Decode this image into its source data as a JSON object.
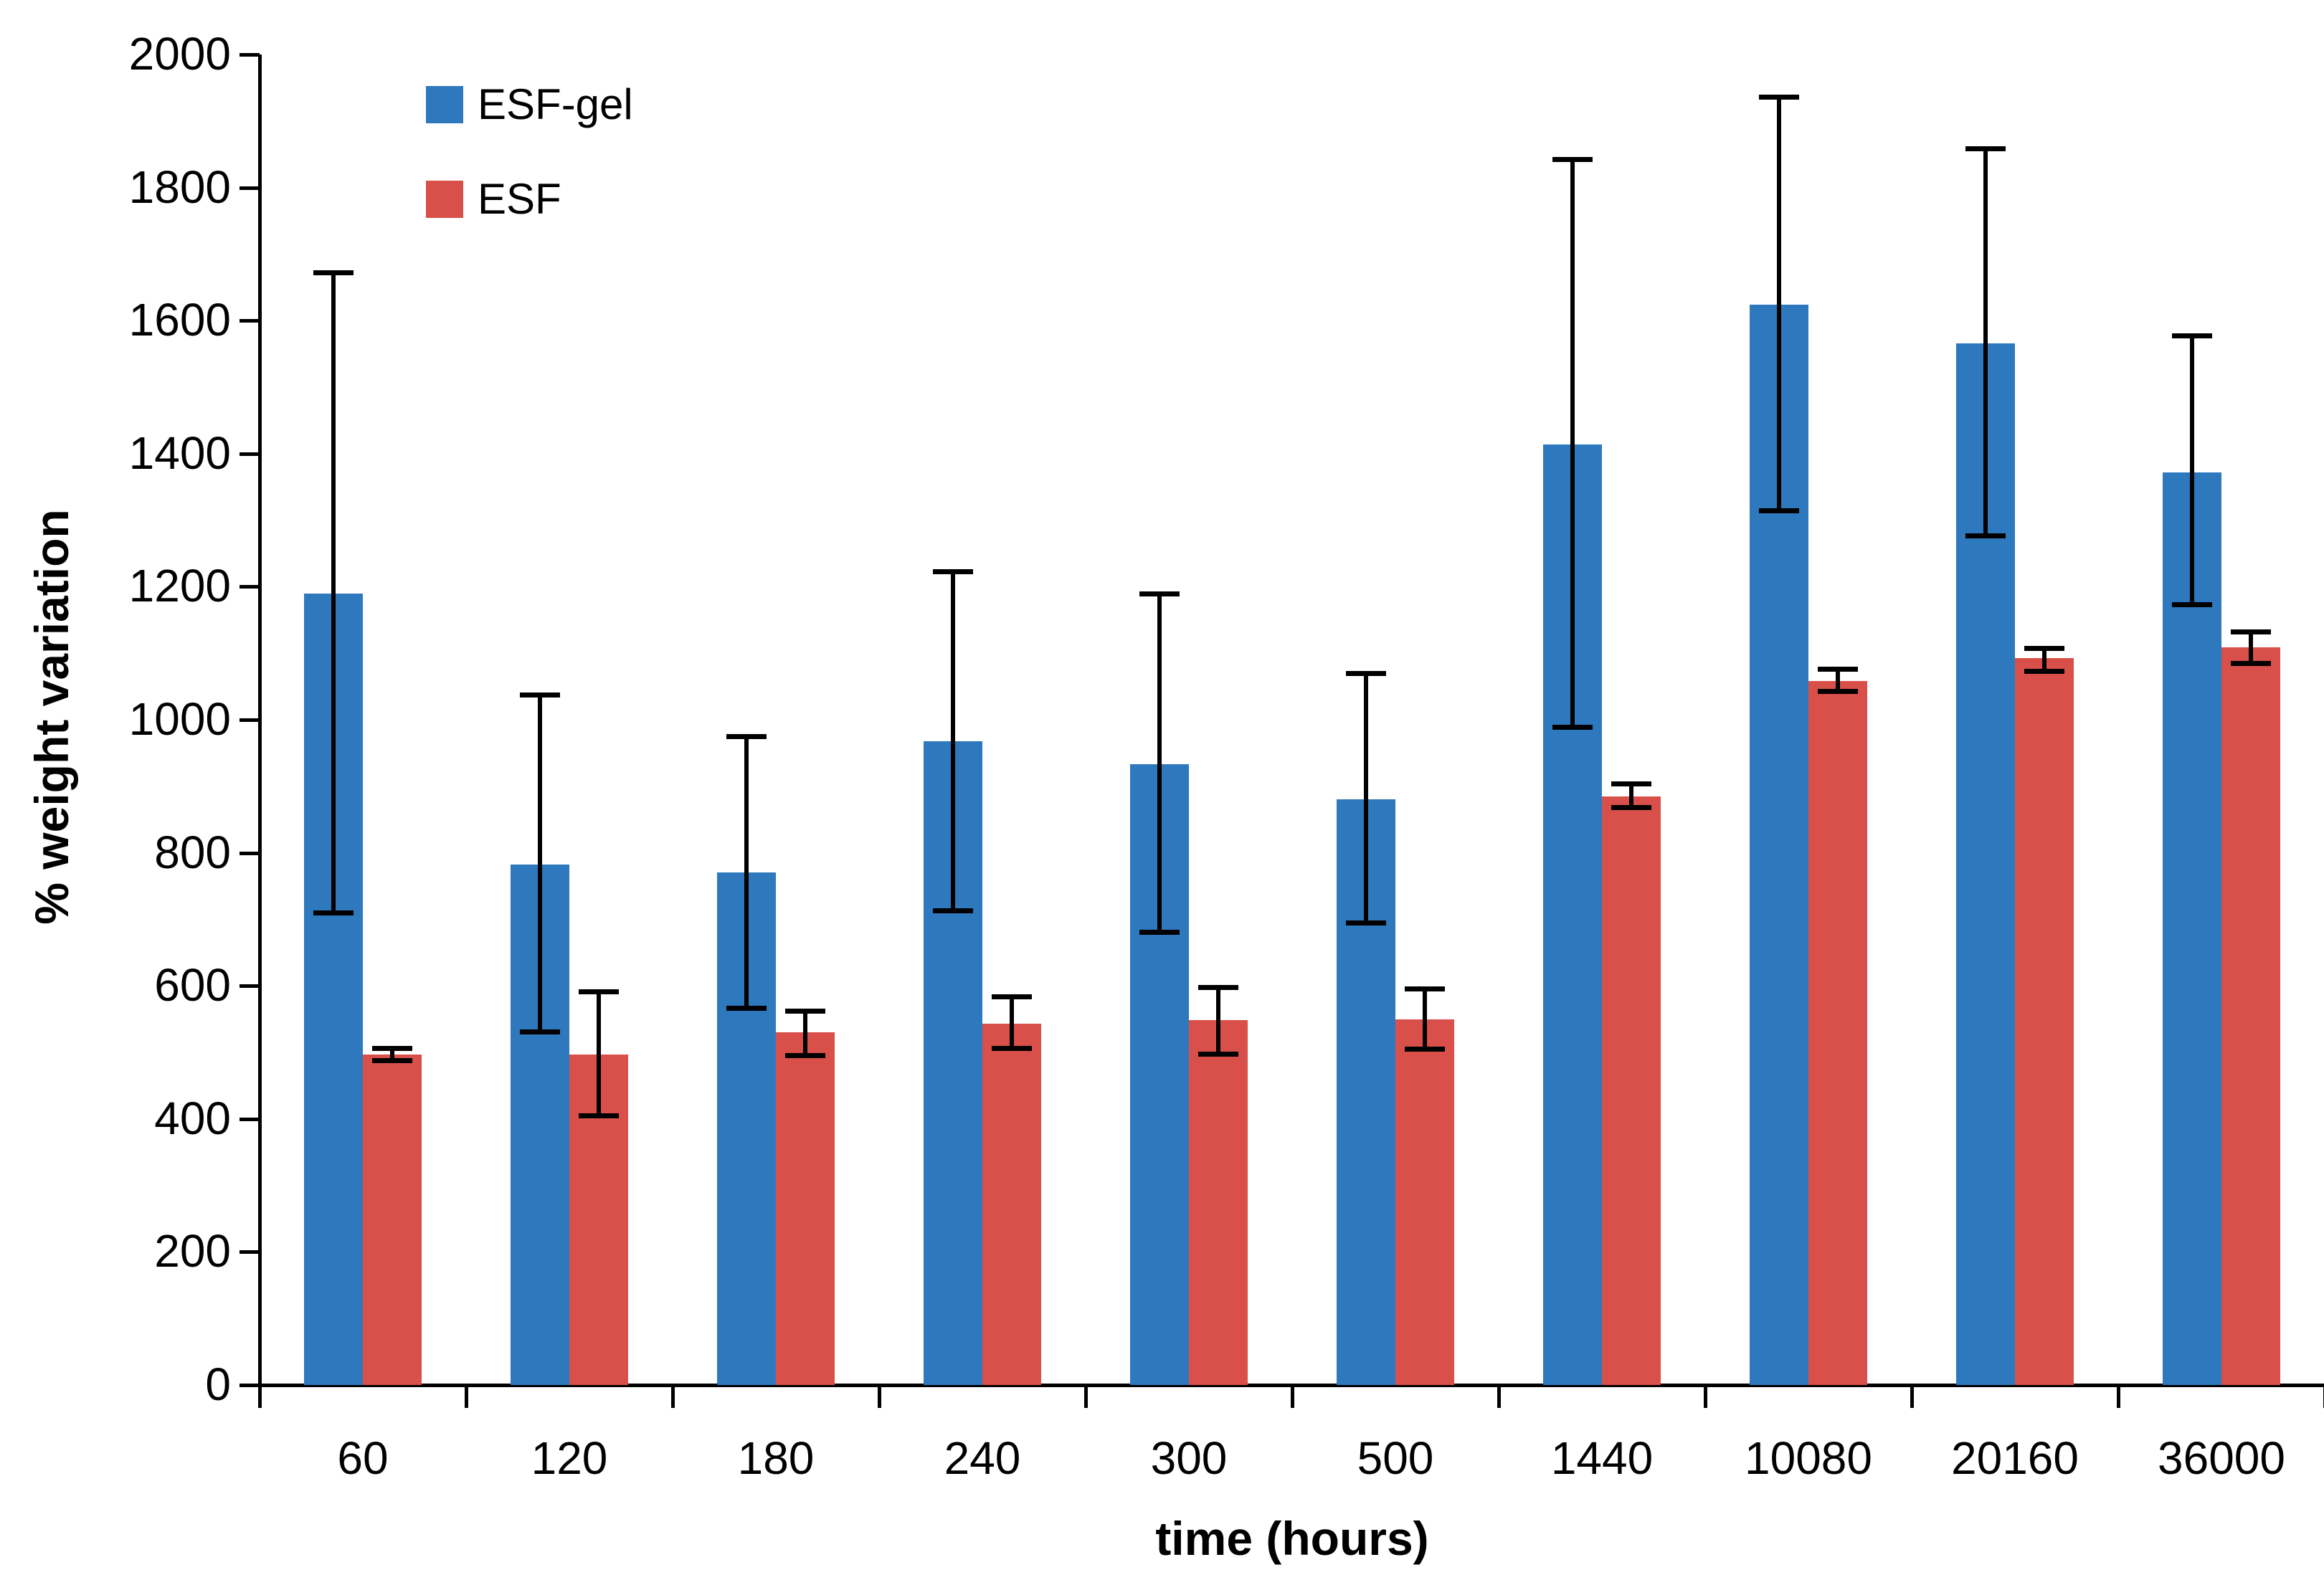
{
  "chart_data": {
    "type": "bar",
    "title": "",
    "xlabel": "time (hours)",
    "ylabel": "% weight variation",
    "categories": [
      "60",
      "120",
      "180",
      "240",
      "300",
      "500",
      "1440",
      "10080",
      "20160",
      "36000"
    ],
    "y_ticks": [
      0,
      200,
      400,
      600,
      800,
      1000,
      1200,
      1400,
      1600,
      1800,
      2000
    ],
    "ylim": [
      0,
      2000
    ],
    "grid": false,
    "legend_position": "top-left-inside",
    "axis_color": "#000000",
    "error_bar_color": "#000000",
    "series": [
      {
        "name": "ESF-gel",
        "color": "#2E78BE",
        "values": [
          1190,
          782,
          771,
          968,
          933,
          880,
          1414,
          1624,
          1566,
          1372
        ],
        "error_high": [
          1672,
          1038,
          975,
          1223,
          1190,
          1070,
          1843,
          1936,
          1859,
          1578
        ],
        "error_low": [
          710,
          531,
          567,
          713,
          681,
          695,
          989,
          1315,
          1277,
          1174
        ]
      },
      {
        "name": "ESF",
        "color": "#D9504B",
        "values": [
          497,
          497,
          530,
          543,
          549,
          550,
          885,
          1058,
          1093,
          1109
        ],
        "error_high": [
          506,
          592,
          562,
          584,
          598,
          596,
          904,
          1077,
          1108,
          1133
        ],
        "error_low": [
          488,
          405,
          496,
          506,
          498,
          505,
          869,
          1043,
          1073,
          1085
        ]
      }
    ]
  }
}
